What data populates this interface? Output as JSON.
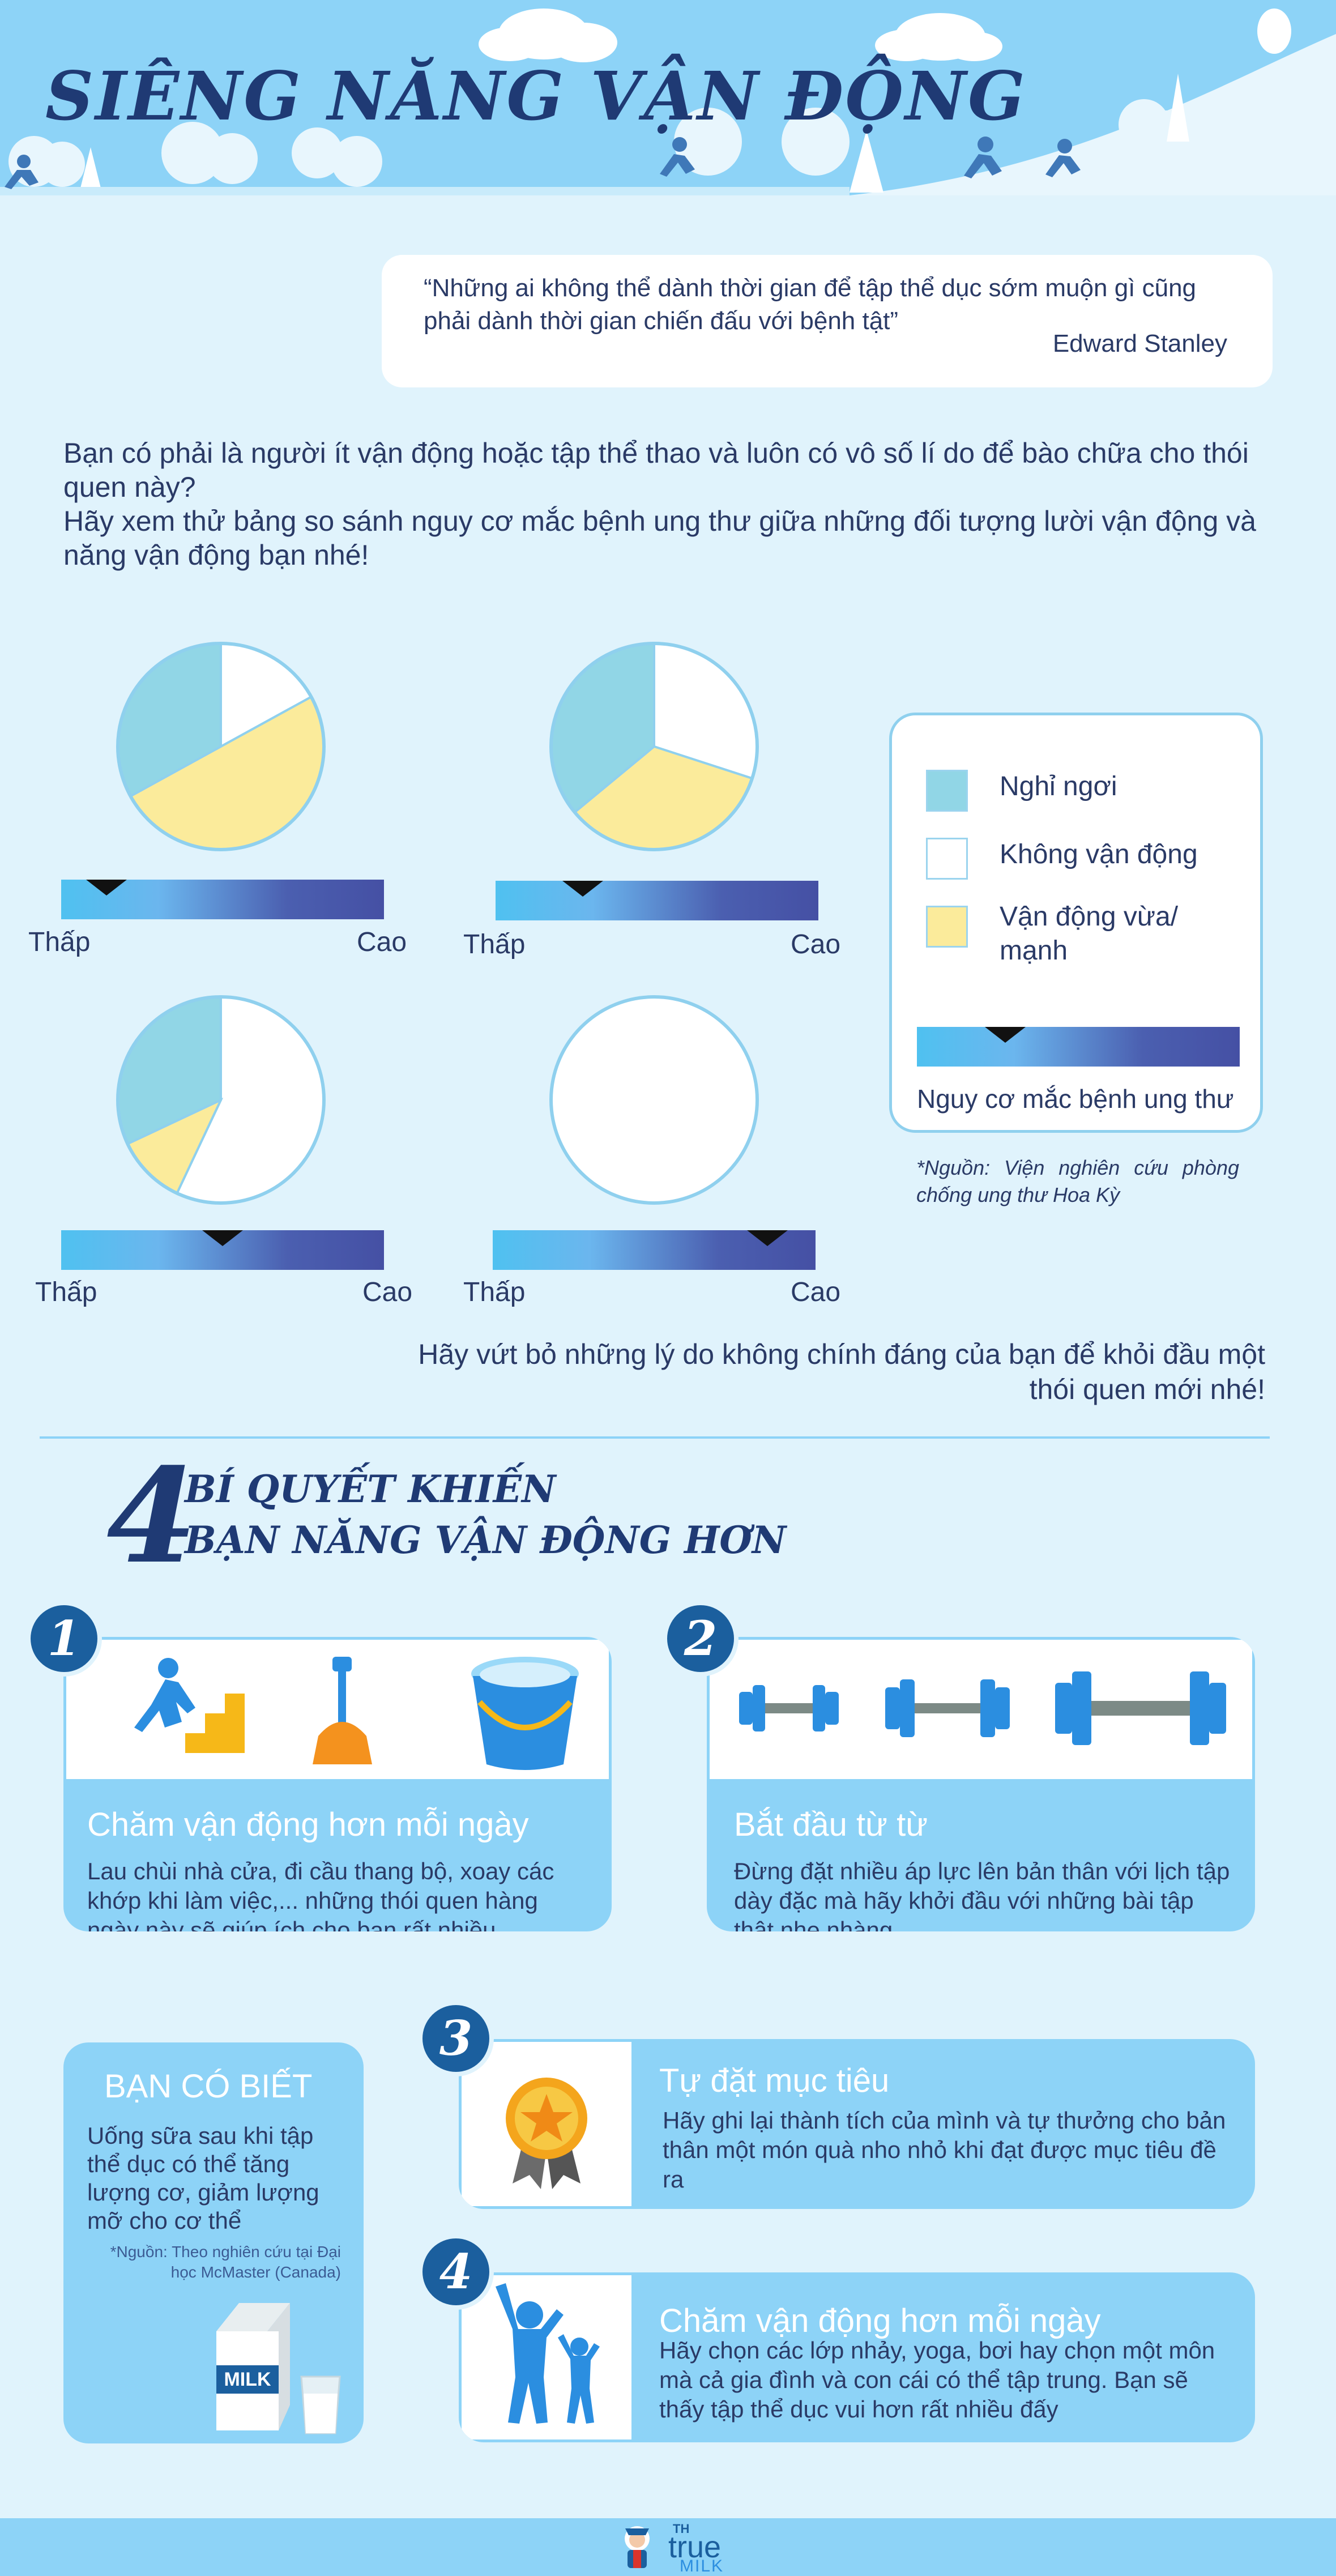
{
  "header": {
    "title": "SIÊNG NĂNG VẬN ĐỘNG"
  },
  "quote": {
    "text": "“Những ai không thể dành thời gian để tập thể dục sớm muộn gì cũng phải dành thời gian chiến đấu với bệnh tật”",
    "author": "Edward Stanley"
  },
  "intro": {
    "line1": "Bạn có phải là người ít vận động hoặc tập thể thao và luôn có vô số lí do để bào chữa cho thói quen này?",
    "line2": "Hãy xem thử bảng so sánh nguy cơ mắc bệnh ung thư giữa những đối tượng lười vận động và năng vận động bạn nhé!"
  },
  "chart_data": {
    "type": "pie",
    "categories": [
      "Nghỉ ngơi",
      "Không vận động",
      "Vận động vừa/ mạnh"
    ],
    "colors": [
      "#91d6e6",
      "#ffffff",
      "#fbeb9b"
    ],
    "risk_scale": {
      "label": "Nguy cơ mắc bệnh ung thư",
      "low": "Thấp",
      "high": "Cao"
    },
    "charts": [
      {
        "values": [
          0.33,
          0.17,
          0.5
        ],
        "risk": 0.14
      },
      {
        "values": [
          0.36,
          0.3,
          0.34
        ],
        "risk": 0.27
      },
      {
        "values": [
          0.32,
          0.57,
          0.11
        ],
        "risk": 0.5
      },
      {
        "values": [
          0,
          1.0,
          0
        ],
        "risk": 0.85
      }
    ],
    "legend_position": "right"
  },
  "legend": {
    "items": [
      {
        "label": "Nghỉ ngơi"
      },
      {
        "label": "Không vận động"
      },
      {
        "label": "Vận động vừa/ mạnh"
      }
    ],
    "scale_label": "Nguy cơ mắc bệnh ung thư"
  },
  "source1": "*Nguồn: Viện nghiên cứu phòng chống ung thư Hoa Kỳ",
  "closing": "Hãy vứt bỏ những lý do không chính đáng của bạn để khỏi đầu một thói quen mới nhé!",
  "tips": {
    "number": "4",
    "title_line1": "BÍ QUYẾT KHIẾN",
    "title_line2": "BẠN NĂNG VẬN ĐỘNG HƠN",
    "items": [
      {
        "num": "1",
        "title": "Chăm vận động hơn mỗi ngày",
        "body": "Lau chùi nhà cửa, đi cầu thang bộ, xoay các khớp khi làm việc,... những thói quen hàng ngày này sẽ giúp ích cho bạn rất nhiều"
      },
      {
        "num": "2",
        "title": "Bắt đầu từ từ",
        "body": "Đừng đặt nhiều áp lực lên bản thân với lịch tập dày đặc mà hãy khởi đầu với những bài tập thật nhẹ nhàng"
      },
      {
        "num": "3",
        "title": "Tự đặt mục tiêu",
        "body": "Hãy ghi lại thành tích của mình và tự thưởng cho bản thân một món quà nho nhỏ khi đạt được mục tiêu đề ra"
      },
      {
        "num": "4",
        "title": "Chăm vận động hơn mỗi ngày",
        "body": "Hãy chọn các lớp nhảy, yoga, bơi hay chọn một môn mà cả gia đình và con cái có thể tập trung. Bạn sẽ thấy tập thể dục vui hơn rất nhiều đấy"
      }
    ]
  },
  "did_you_know": {
    "title": "BẠN CÓ BIẾT",
    "body": "Uống sữa sau khi tập thể dục có thể tăng lượng cơ, giảm lượng mỡ cho cơ thể",
    "source": "*Nguồn: Theo nghiên cứu tại Đại học McMaster (Canada)",
    "milk_label": "MILK"
  },
  "footer": {
    "brand_small": "TH",
    "brand_main": "true",
    "brand_sub": "MILK"
  }
}
